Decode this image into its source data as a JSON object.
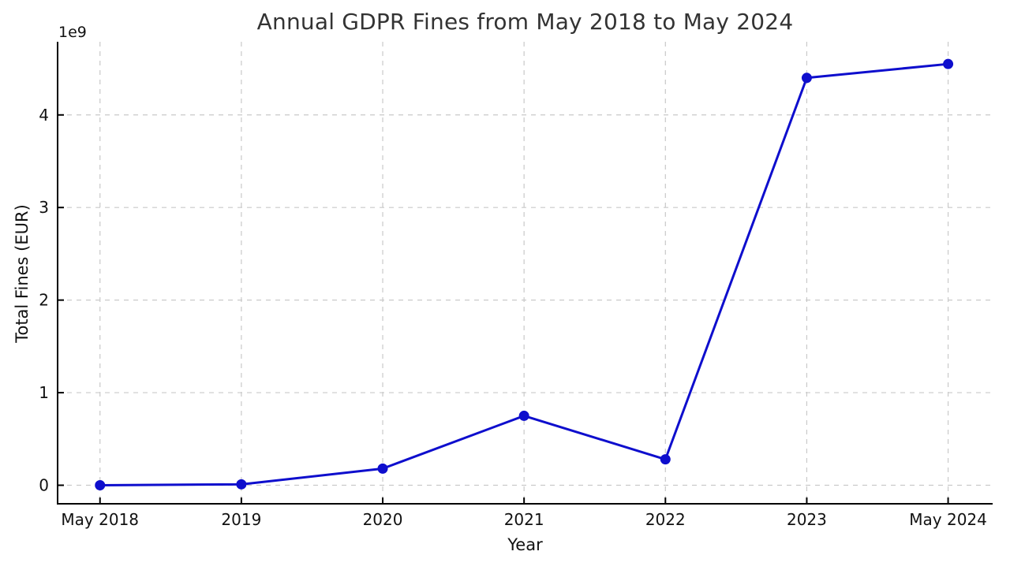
{
  "chart_data": {
    "type": "line",
    "title": "Annual GDPR Fines from May 2018 to May 2024",
    "xlabel": "Year",
    "ylabel": "Total Fines (EUR)",
    "y_offset_label": "1e9",
    "categories": [
      "May 2018",
      "2019",
      "2020",
      "2021",
      "2022",
      "2023",
      "May 2024"
    ],
    "series": [
      {
        "name": "Total Fines (EUR)",
        "values_in_billions_eur": [
          0.0,
          0.01,
          0.18,
          0.75,
          0.28,
          4.4,
          4.55
        ]
      }
    ],
    "ytick_values": [
      0,
      1,
      2,
      3,
      4
    ],
    "ytick_labels": [
      "0",
      "1",
      "2",
      "3",
      "4"
    ],
    "ylim": [
      -0.2,
      4.79
    ],
    "xlim_category_index": [
      -0.3,
      6.315
    ],
    "grid": "on",
    "grid_style": "dashed",
    "legend": "none",
    "line_color": "#0e0ecd",
    "marker": "circle",
    "grid_color": "#c9c9c9",
    "spine_color": "#000000",
    "text_color": "#111111",
    "title_color": "#333333",
    "background_color": "#ffffff"
  }
}
